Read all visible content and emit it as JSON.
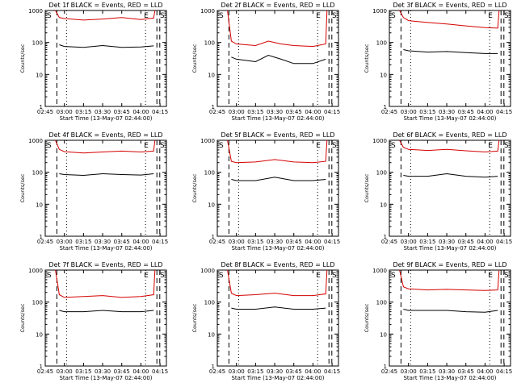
{
  "colors": {
    "events": "#000000",
    "lld": "#d40000",
    "axes": "#000000",
    "background": "#ffffff"
  },
  "chart_data": [
    {
      "type": "line",
      "title": "Det 1f BLACK = Events, RED = LLD",
      "xlabel": "Start Time (13-May-07 02:44:00)",
      "ylabel": "Counts/sec",
      "y_scale": "log",
      "ylim": [
        1,
        1000
      ],
      "x_ticks": [
        "02:45",
        "03:00",
        "03:15",
        "03:30",
        "03:45",
        "04:00",
        "04:15"
      ],
      "y_ticks": [
        "1",
        "10",
        "100",
        "1000"
      ],
      "markers": {
        "start": "S",
        "end": "E",
        "side": "S"
      },
      "series": [
        {
          "name": "LLD",
          "x": [
            "02:53",
            "02:56",
            "03:00",
            "03:15",
            "03:30",
            "03:45",
            "04:00",
            "04:10",
            "04:11"
          ],
          "values": [
            1000,
            600,
            560,
            500,
            540,
            600,
            520,
            580,
            1000
          ]
        },
        {
          "name": "Events",
          "x": [
            "02:56",
            "03:00",
            "03:15",
            "03:30",
            "03:45",
            "04:00",
            "04:10"
          ],
          "values": [
            85,
            75,
            70,
            80,
            70,
            72,
            78
          ]
        }
      ]
    },
    {
      "type": "line",
      "title": "Det 2f BLACK = Events, RED = LLD",
      "xlabel": "Start Time (13-May-07 02:44:00)",
      "ylabel": "Counts/sec",
      "y_scale": "log",
      "ylim": [
        1,
        1000
      ],
      "x_ticks": [
        "02:45",
        "03:00",
        "03:15",
        "03:30",
        "03:45",
        "04:00",
        "04:15"
      ],
      "y_ticks": [
        "1",
        "10",
        "100",
        "1000"
      ],
      "markers": {
        "start": "S",
        "end": "E",
        "side": "S"
      },
      "series": [
        {
          "name": "LLD",
          "x": [
            "02:53",
            "02:56",
            "03:00",
            "03:15",
            "03:25",
            "03:35",
            "03:45",
            "04:00",
            "04:10",
            "04:11"
          ],
          "values": [
            1000,
            110,
            90,
            80,
            110,
            90,
            80,
            75,
            90,
            1000
          ]
        },
        {
          "name": "Events",
          "x": [
            "02:56",
            "03:00",
            "03:15",
            "03:25",
            "03:35",
            "03:45",
            "04:00",
            "04:10"
          ],
          "values": [
            35,
            30,
            25,
            40,
            30,
            22,
            22,
            30
          ]
        }
      ]
    },
    {
      "type": "line",
      "title": "Det 3f BLACK = Events, RED = LLD",
      "xlabel": "Start Time (13-May-07 02:44:00)",
      "ylabel": "Counts/sec",
      "y_scale": "log",
      "ylim": [
        1,
        1000
      ],
      "x_ticks": [
        "02:45",
        "03:00",
        "03:15",
        "03:30",
        "03:45",
        "04:00",
        "04:15"
      ],
      "y_ticks": [
        "1",
        "10",
        "100",
        "1000"
      ],
      "markers": {
        "start": "S",
        "end": "E",
        "side": "S"
      },
      "series": [
        {
          "name": "LLD",
          "x": [
            "02:53",
            "02:56",
            "03:00",
            "03:15",
            "03:30",
            "03:45",
            "04:00",
            "04:10",
            "04:11"
          ],
          "values": [
            1000,
            600,
            480,
            420,
            380,
            330,
            290,
            280,
            1000
          ]
        },
        {
          "name": "Events",
          "x": [
            "02:56",
            "03:00",
            "03:15",
            "03:30",
            "03:45",
            "04:00",
            "04:10"
          ],
          "values": [
            60,
            55,
            50,
            52,
            48,
            45,
            45
          ]
        }
      ]
    },
    {
      "type": "line",
      "title": "Det 4f BLACK = Events, RED = LLD",
      "xlabel": "Start Time (13-May-07 02:44:00)",
      "ylabel": "Counts/sec",
      "y_scale": "log",
      "ylim": [
        1,
        1000
      ],
      "x_ticks": [
        "02:45",
        "03:00",
        "03:15",
        "03:30",
        "03:45",
        "04:00",
        "04:15"
      ],
      "y_ticks": [
        "1",
        "10",
        "100",
        "1000"
      ],
      "markers": {
        "start": "S",
        "end": "E",
        "side": "S"
      },
      "series": [
        {
          "name": "LLD",
          "x": [
            "02:53",
            "02:56",
            "03:00",
            "03:15",
            "03:30",
            "03:45",
            "04:00",
            "04:10",
            "04:11"
          ],
          "values": [
            1000,
            520,
            440,
            400,
            430,
            460,
            430,
            460,
            1000
          ]
        },
        {
          "name": "Events",
          "x": [
            "02:56",
            "03:00",
            "03:15",
            "03:30",
            "03:45",
            "04:00",
            "04:10"
          ],
          "values": [
            90,
            85,
            80,
            90,
            85,
            82,
            90
          ]
        }
      ]
    },
    {
      "type": "line",
      "title": "Det 5f BLACK = Events, RED = LLD",
      "xlabel": "Start Time (13-May-07 02:44:00)",
      "ylabel": "Counts/sec",
      "y_scale": "log",
      "ylim": [
        1,
        1000
      ],
      "x_ticks": [
        "02:45",
        "03:00",
        "03:15",
        "03:30",
        "03:45",
        "04:00",
        "04:15"
      ],
      "y_ticks": [
        "1",
        "10",
        "100",
        "1000"
      ],
      "markers": {
        "start": "S",
        "end": "E",
        "side": "S"
      },
      "series": [
        {
          "name": "LLD",
          "x": [
            "02:53",
            "02:56",
            "03:00",
            "03:15",
            "03:30",
            "03:45",
            "04:00",
            "04:10",
            "04:11"
          ],
          "values": [
            1000,
            220,
            200,
            210,
            250,
            210,
            200,
            220,
            1000
          ]
        },
        {
          "name": "Events",
          "x": [
            "02:56",
            "03:00",
            "03:15",
            "03:30",
            "03:45",
            "04:00",
            "04:10"
          ],
          "values": [
            60,
            55,
            55,
            70,
            55,
            55,
            60
          ]
        }
      ]
    },
    {
      "type": "line",
      "title": "Det 6f BLACK = Events, RED = LLD",
      "xlabel": "Start Time (13-May-07 02:44:00)",
      "ylabel": "Counts/sec",
      "y_scale": "log",
      "ylim": [
        1,
        1000
      ],
      "x_ticks": [
        "02:45",
        "03:00",
        "03:15",
        "03:30",
        "03:45",
        "04:00",
        "04:15"
      ],
      "y_ticks": [
        "1",
        "10",
        "100",
        "1000"
      ],
      "markers": {
        "start": "S",
        "end": "E",
        "side": "S"
      },
      "series": [
        {
          "name": "LLD",
          "x": [
            "02:53",
            "02:56",
            "03:00",
            "03:15",
            "03:30",
            "03:45",
            "04:00",
            "04:10",
            "04:11"
          ],
          "values": [
            1000,
            600,
            520,
            480,
            520,
            470,
            430,
            460,
            1000
          ]
        },
        {
          "name": "Events",
          "x": [
            "02:56",
            "03:00",
            "03:15",
            "03:30",
            "03:45",
            "04:00",
            "04:10"
          ],
          "values": [
            80,
            75,
            75,
            90,
            75,
            70,
            75
          ]
        }
      ]
    },
    {
      "type": "line",
      "title": "Det 7f BLACK = Events, RED = LLD",
      "xlabel": "Start Time (13-May-07 02:44:00)",
      "ylabel": "Counts/sec",
      "y_scale": "log",
      "ylim": [
        1,
        1000
      ],
      "x_ticks": [
        "02:45",
        "03:00",
        "03:15",
        "03:30",
        "03:45",
        "04:00",
        "04:15"
      ],
      "y_ticks": [
        "1",
        "10",
        "100",
        "1000"
      ],
      "markers": {
        "start": "S",
        "end": "E",
        "side": "S"
      },
      "series": [
        {
          "name": "LLD",
          "x": [
            "02:53",
            "02:56",
            "03:00",
            "03:15",
            "03:30",
            "03:45",
            "04:00",
            "04:10",
            "04:11"
          ],
          "values": [
            1000,
            170,
            140,
            150,
            160,
            140,
            150,
            170,
            1000
          ]
        },
        {
          "name": "Events",
          "x": [
            "02:56",
            "03:00",
            "03:15",
            "03:30",
            "03:45",
            "04:00",
            "04:10"
          ],
          "values": [
            55,
            50,
            50,
            55,
            50,
            50,
            55
          ]
        }
      ]
    },
    {
      "type": "line",
      "title": "Det 8f BLACK = Events, RED = LLD",
      "xlabel": "Start Time (13-May-07 02:44:00)",
      "ylabel": "Counts/sec",
      "y_scale": "log",
      "ylim": [
        1,
        1000
      ],
      "x_ticks": [
        "02:45",
        "03:00",
        "03:15",
        "03:30",
        "03:45",
        "04:00",
        "04:15"
      ],
      "y_ticks": [
        "1",
        "10",
        "100",
        "1000"
      ],
      "markers": {
        "start": "S",
        "end": "E",
        "side": "S"
      },
      "series": [
        {
          "name": "LLD",
          "x": [
            "02:53",
            "02:56",
            "03:00",
            "03:15",
            "03:30",
            "03:45",
            "04:00",
            "04:10",
            "04:11"
          ],
          "values": [
            1000,
            190,
            160,
            170,
            190,
            160,
            160,
            180,
            1000
          ]
        },
        {
          "name": "Events",
          "x": [
            "02:56",
            "03:00",
            "03:15",
            "03:30",
            "03:45",
            "04:00",
            "04:10"
          ],
          "values": [
            65,
            60,
            60,
            70,
            60,
            60,
            65
          ]
        }
      ]
    },
    {
      "type": "line",
      "title": "Det 9f BLACK = Events, RED = LLD",
      "xlabel": "Start Time (13-May-07 02:44:00)",
      "ylabel": "Counts/sec",
      "y_scale": "log",
      "ylim": [
        1,
        1000
      ],
      "x_ticks": [
        "02:45",
        "03:00",
        "03:15",
        "03:30",
        "03:45",
        "04:00",
        "04:15"
      ],
      "y_ticks": [
        "1",
        "10",
        "100",
        "1000"
      ],
      "markers": {
        "start": "S",
        "end": "E",
        "side": "S"
      },
      "series": [
        {
          "name": "LLD",
          "x": [
            "02:53",
            "02:56",
            "03:00",
            "03:15",
            "03:30",
            "03:45",
            "04:00",
            "04:10",
            "04:11"
          ],
          "values": [
            1000,
            300,
            260,
            240,
            250,
            240,
            230,
            240,
            1000
          ]
        },
        {
          "name": "Events",
          "x": [
            "02:56",
            "03:00",
            "03:15",
            "03:30",
            "03:45",
            "04:00",
            "04:10"
          ],
          "values": [
            60,
            55,
            55,
            55,
            50,
            48,
            55
          ]
        }
      ]
    }
  ]
}
